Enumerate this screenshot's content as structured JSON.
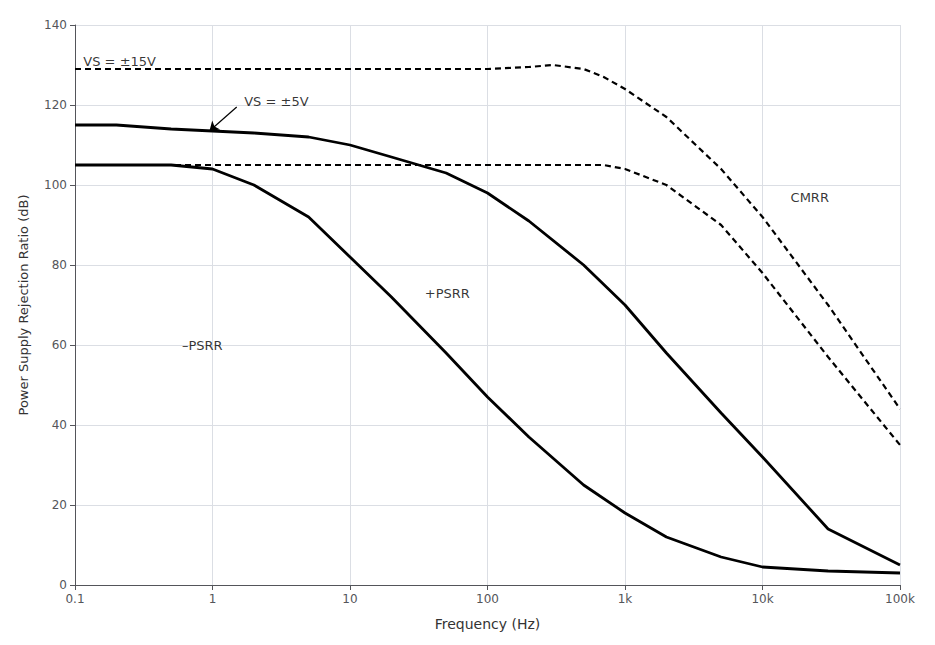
{
  "chart_data": {
    "type": "line",
    "xlabel": "Frequency (Hz)",
    "ylabel": "Power Supply Rejection Ratio (dB)",
    "log": "x",
    "grid": true,
    "xlim": [
      0.1,
      100000
    ],
    "ylim": [
      0,
      140
    ],
    "xticks": [
      0.1,
      1,
      10,
      100,
      {
        "value": 1000,
        "label": "1k"
      },
      {
        "value": 10000,
        "label": "10k"
      },
      {
        "value": 100000,
        "label": "100k"
      }
    ],
    "yticks": [
      0,
      20,
      40,
      60,
      80,
      100,
      120,
      140
    ],
    "series": [
      {
        "x": [
          0.1,
          0.5,
          1.0,
          5,
          10,
          50,
          100,
          200,
          300,
          500,
          700,
          1000,
          2000,
          5000,
          10000,
          30000,
          100000
        ],
        "values": [
          129,
          129,
          129,
          129,
          129,
          129,
          129,
          129.5,
          130,
          129,
          127,
          124,
          117,
          104,
          92,
          70,
          44
        ],
        "color": "#000000",
        "line_style": "dashed"
      },
      {
        "x": [
          0.1,
          1.0,
          10,
          100,
          300,
          500,
          700,
          1000,
          2000,
          5000,
          10000,
          30000,
          100000
        ],
        "values": [
          105,
          105,
          105,
          105,
          105,
          105,
          105,
          104,
          100,
          90,
          78,
          57,
          35
        ],
        "color": "#000000",
        "line_style": "dashed"
      },
      {
        "x": [
          0.1,
          0.2,
          0.5,
          1.0,
          2.0,
          5.0,
          10,
          20,
          50,
          100,
          200,
          500,
          1000,
          2000,
          5000,
          10000,
          30000,
          100000
        ],
        "values": [
          115,
          115,
          114,
          113.5,
          113,
          112,
          110,
          107,
          103,
          98,
          91,
          80,
          70,
          58,
          43,
          32,
          14,
          5
        ],
        "color": "#000000",
        "line_style": "solid"
      },
      {
        "x": [
          0.1,
          0.2,
          0.5,
          1.0,
          2.0,
          5.0,
          10,
          20,
          50,
          100,
          200,
          500,
          1000,
          2000,
          5000,
          10000,
          30000,
          100000
        ],
        "values": [
          105,
          105,
          105,
          104,
          100,
          92,
          82,
          72,
          58,
          47,
          37,
          25,
          18,
          12,
          7,
          4.5,
          3.5,
          3
        ],
        "color": "#000000",
        "line_style": "solid"
      }
    ],
    "annotations": [
      {
        "text": "VS = ±15V",
        "x": 0.115,
        "y": 131
      },
      {
        "text": "VS = ±5V",
        "x": 1.7,
        "y": 121
      },
      {
        "text": "CMRR",
        "x": 16000,
        "y": 97
      },
      {
        "text": "+PSRR",
        "x": 35,
        "y": 73
      },
      {
        "text": "–PSRR",
        "x": 0.6,
        "y": 60
      }
    ],
    "arrows": [
      {
        "from": [
          1.5,
          119.5
        ],
        "to": [
          0.95,
          113.5
        ]
      }
    ]
  }
}
